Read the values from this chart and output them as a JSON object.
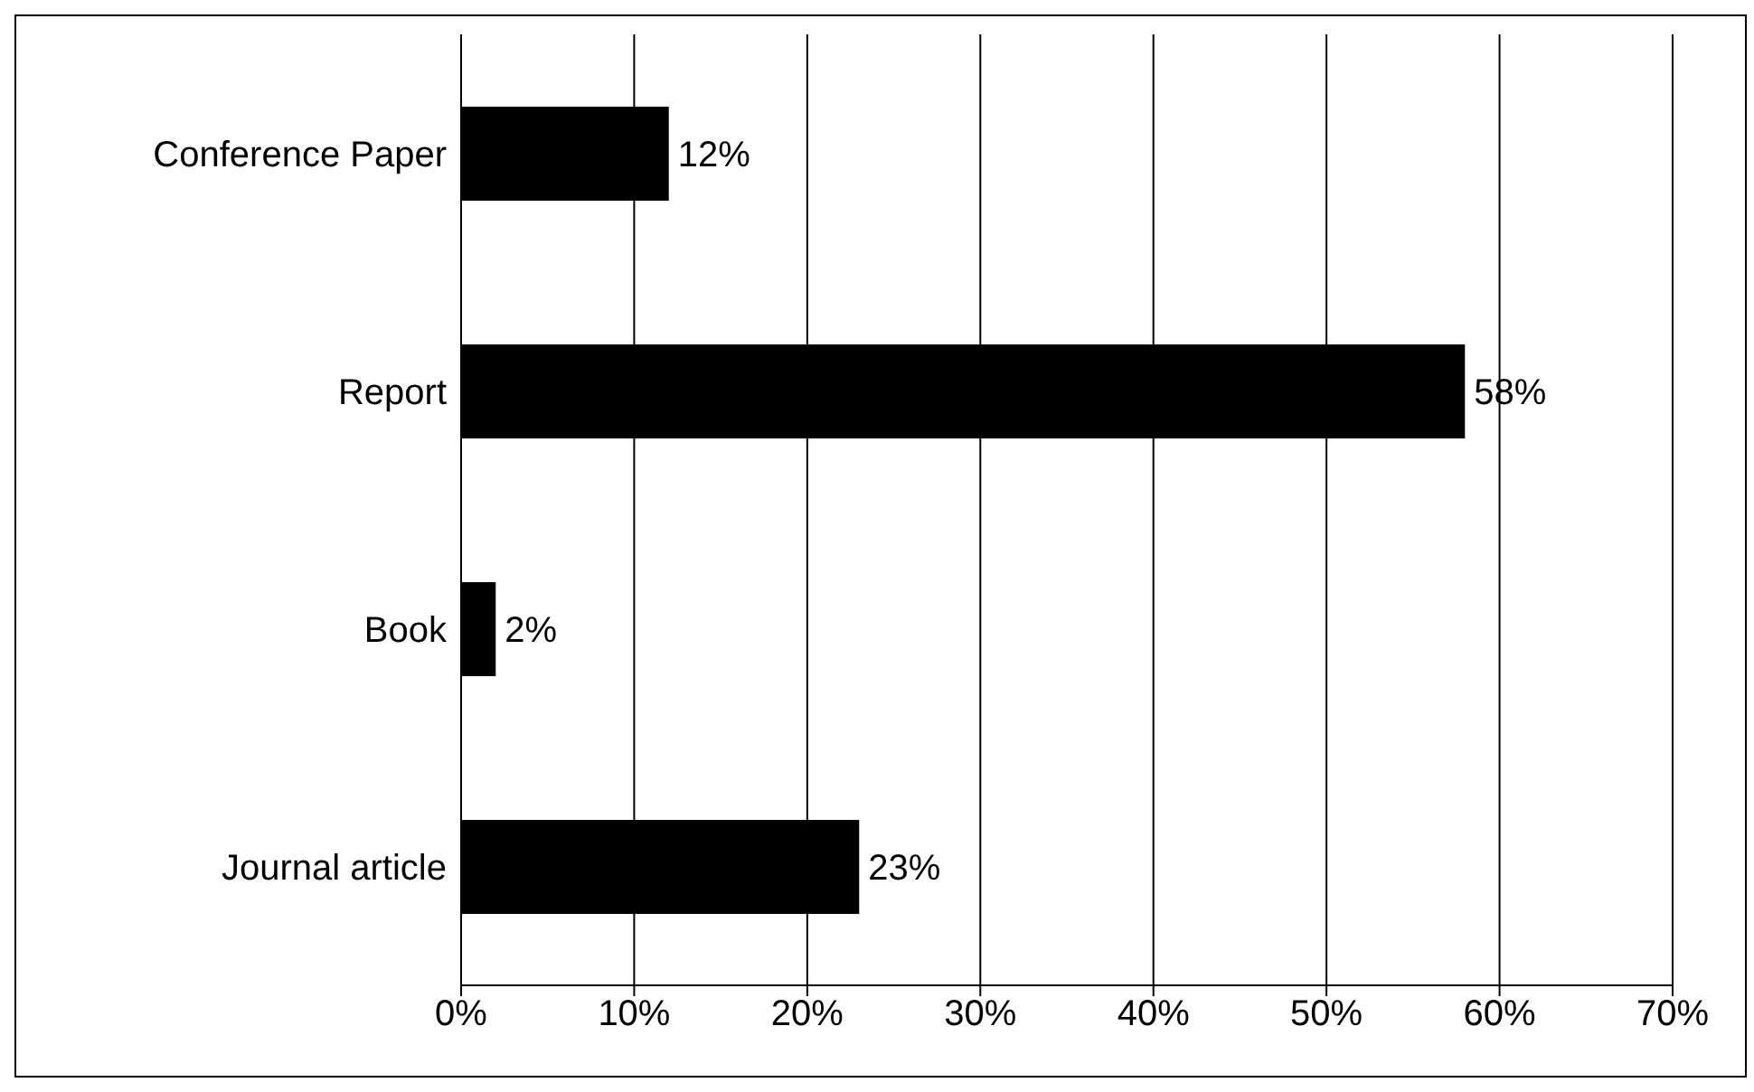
{
  "chart_data": {
    "type": "bar",
    "orientation": "horizontal",
    "categories": [
      "Conference Paper",
      "Report",
      "Book",
      "Journal article"
    ],
    "values": [
      12,
      58,
      2,
      23
    ],
    "value_labels": [
      "12%",
      "58%",
      "2%",
      "23%"
    ],
    "color": "#000000",
    "xlim": [
      0,
      70
    ],
    "xticks": [
      {
        "value": 0,
        "label": "0%"
      },
      {
        "value": 10,
        "label": "10%"
      },
      {
        "value": 20,
        "label": "20%"
      },
      {
        "value": 30,
        "label": "30%"
      },
      {
        "value": 40,
        "label": "40%"
      },
      {
        "value": 50,
        "label": "50%"
      },
      {
        "value": 60,
        "label": "60%"
      },
      {
        "value": 70,
        "label": "70%"
      }
    ],
    "grid": "x"
  }
}
